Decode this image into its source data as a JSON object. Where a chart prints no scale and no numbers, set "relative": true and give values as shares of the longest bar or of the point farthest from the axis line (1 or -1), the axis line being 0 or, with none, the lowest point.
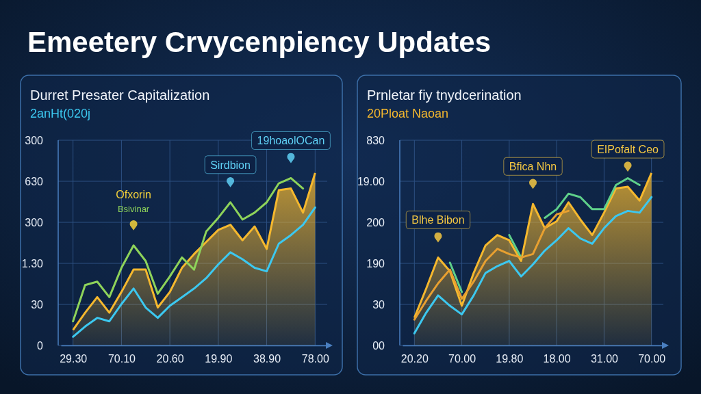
{
  "chart_data": [
    {
      "type": "other",
      "title": "Emeetery Crvycenpiency Updates"
    },
    {
      "type": "line",
      "title": "Durret Presater Capitalization",
      "subtitle": "2anHt(020j",
      "relative": true,
      "grid": true,
      "categories": [
        null,
        "29.30",
        null,
        null,
        null,
        "70.10",
        null,
        null,
        null,
        "20.60",
        null,
        null,
        null,
        "19.90",
        null,
        null,
        null,
        "38.90",
        null,
        null,
        null,
        "78.00",
        null
      ],
      "series": [
        {
          "type": "line",
          "color": "#8ed35a",
          "values": [
            null,
            0.14,
            0.35,
            0.37,
            0.28,
            0.45,
            0.58,
            0.49,
            0.3,
            0.4,
            0.51,
            0.44,
            0.66,
            0.74,
            0.83,
            0.73,
            0.77,
            0.83,
            0.94,
            0.97,
            0.91,
            null,
            null
          ]
        },
        {
          "type": "area",
          "color": "#f5b82e",
          "values": [
            null,
            0.09,
            0.19,
            0.28,
            0.19,
            0.31,
            0.44,
            0.44,
            0.22,
            0.31,
            0.45,
            0.53,
            0.6,
            0.67,
            0.7,
            0.61,
            0.69,
            0.56,
            0.9,
            0.91,
            0.77,
            1,
            null
          ]
        },
        {
          "type": "line",
          "color": "#3cc8f0",
          "values": [
            null,
            0.05,
            0.11,
            0.16,
            0.14,
            0.24,
            0.33,
            0.22,
            0.16,
            0.23,
            0.28,
            0.33,
            0.39,
            0.47,
            0.54,
            0.5,
            0.45,
            0.43,
            0.59,
            0.64,
            0.7,
            0.8,
            null
          ]
        }
      ],
      "annotations": [
        {
          "text": "Ofxorin\nBsivinar",
          "y": 0.58
        },
        {
          "text": "Sirdbion",
          "y": 0.83
        },
        {
          "text": "19hoaolOCan",
          "y": 0.97
        },
        "300",
        "630",
        "300",
        "1.30",
        "30",
        "0"
      ]
    },
    {
      "type": "line",
      "title": "Prnletar fiy tnydcerination",
      "subtitle": "20Ploat Naoan",
      "relative": true,
      "grid": true,
      "categories": [
        null,
        "20.20",
        null,
        null,
        null,
        "70.00",
        null,
        null,
        null,
        "19.80",
        null,
        null,
        null,
        "18.00",
        null,
        null,
        null,
        "31.00",
        null,
        null,
        null,
        "70.00",
        null
      ],
      "series": [
        {
          "type": "line",
          "color": "#5fd08a",
          "values": [
            null,
            null,
            null,
            null,
            0.48,
            0.31,
            null,
            null,
            null,
            0.64,
            0.51,
            null,
            0.74,
            0.79,
            0.88,
            0.86,
            0.79,
            0.79,
            0.93,
            0.97,
            0.93,
            null,
            null
          ]
        },
        {
          "type": "line",
          "color": "#e8a030",
          "values": [
            null,
            0.15,
            0.26,
            0.36,
            0.44,
            0.27,
            0.37,
            0.49,
            0.56,
            0.53,
            0.51,
            0.53,
            0.68,
            0.76,
            0.78,
            null,
            null,
            null,
            null,
            null,
            null,
            null,
            null
          ]
        },
        {
          "type": "area",
          "color": "#f5b82e",
          "values": [
            null,
            0.16,
            0.33,
            0.51,
            0.43,
            0.23,
            0.42,
            0.58,
            0.64,
            0.61,
            0.49,
            0.82,
            0.68,
            0.72,
            0.83,
            0.73,
            0.64,
            0.77,
            0.91,
            0.92,
            0.84,
            1,
            null
          ]
        },
        {
          "type": "line",
          "color": "#3cc8f0",
          "values": [
            null,
            0.07,
            0.19,
            0.29,
            0.23,
            0.18,
            0.29,
            0.42,
            0.46,
            0.49,
            0.4,
            0.47,
            0.55,
            0.61,
            0.68,
            0.62,
            0.59,
            0.68,
            0.75,
            0.78,
            0.77,
            0.86,
            null
          ]
        }
      ],
      "annotations": [
        {
          "text": "Blhe Bibon",
          "y": 0.51
        },
        {
          "text": "Bfica Nhn",
          "y": 0.82
        },
        {
          "text": "EIPofalt Ceo",
          "y": 0.92
        },
        "830",
        "19.00",
        "200",
        "190",
        "30",
        "00"
      ]
    }
  ]
}
